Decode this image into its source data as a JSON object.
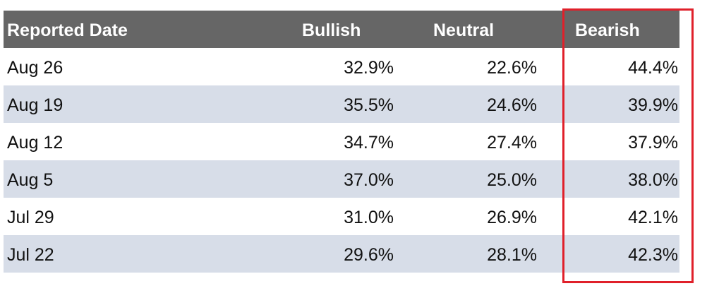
{
  "table": {
    "headers": [
      "Reported Date",
      "Bullish",
      "Neutral",
      "Bearish"
    ],
    "rows": [
      [
        "Aug 26",
        "32.9%",
        "22.6%",
        "44.4%"
      ],
      [
        "Aug 19",
        "35.5%",
        "24.6%",
        "39.9%"
      ],
      [
        "Aug 12",
        "34.7%",
        "27.4%",
        "37.9%"
      ],
      [
        "Aug 5",
        "37.0%",
        "25.0%",
        "38.0%"
      ],
      [
        "Jul 29",
        "31.0%",
        "26.9%",
        "42.1%"
      ],
      [
        "Jul 22",
        "29.6%",
        "28.1%",
        "42.3%"
      ]
    ]
  }
}
